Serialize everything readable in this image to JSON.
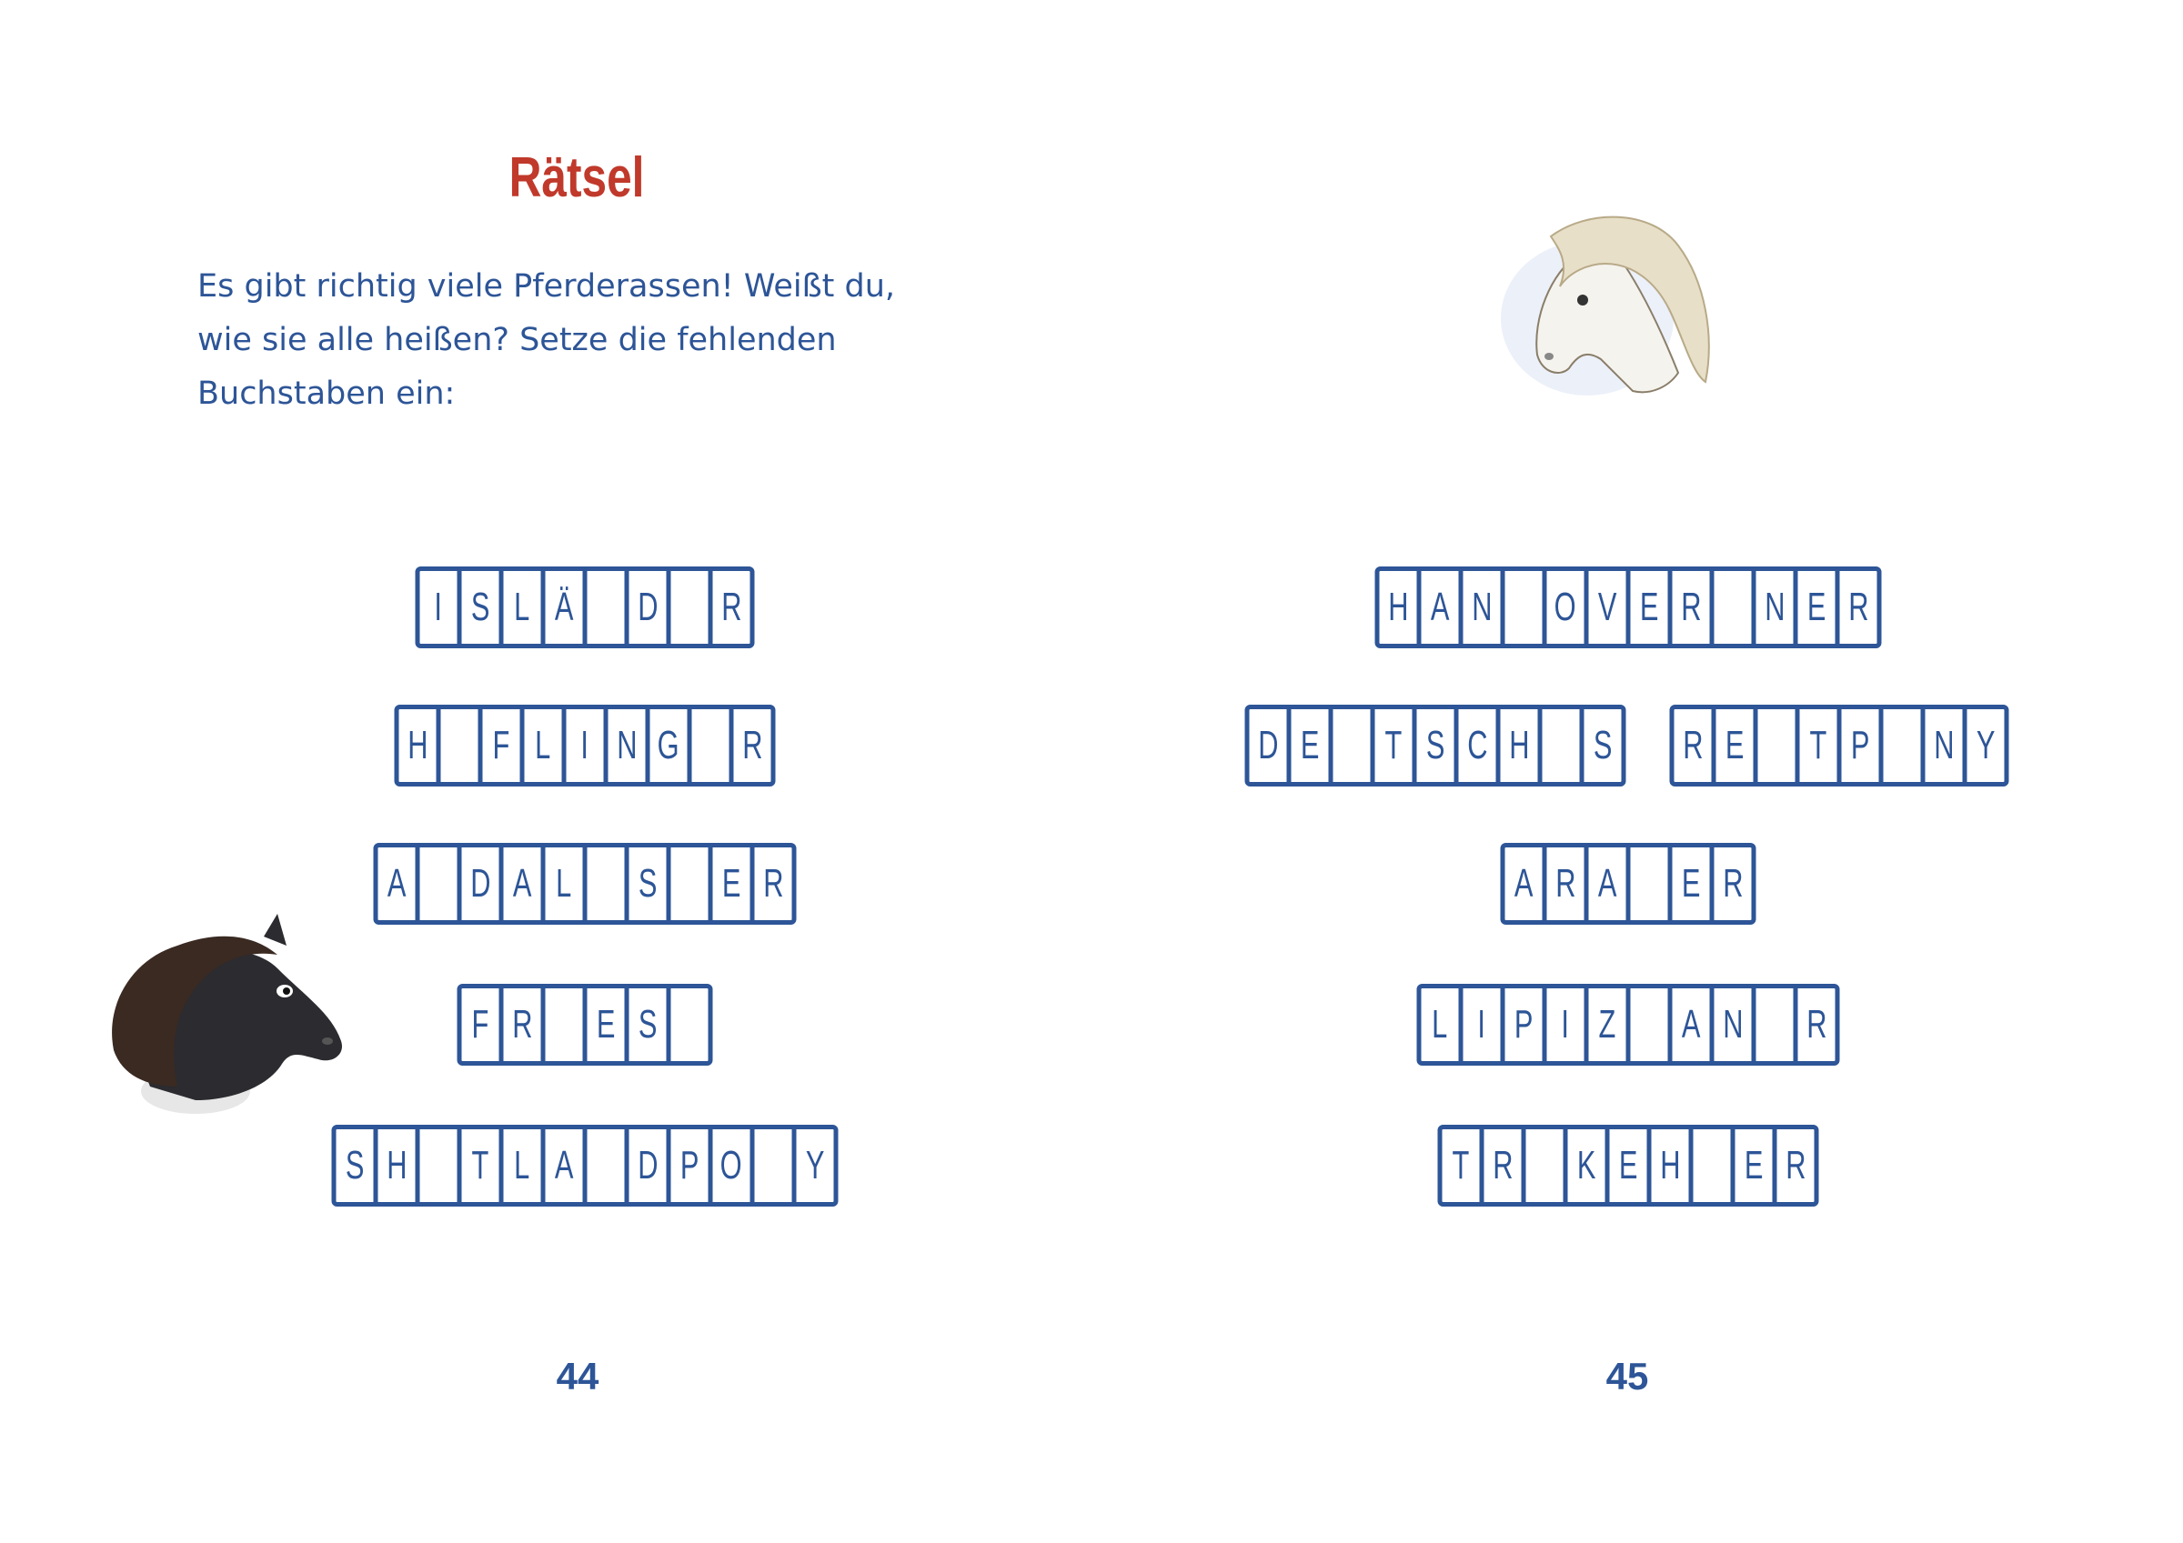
{
  "left_page": {
    "title": "Rätsel",
    "intro_lines": [
      "Es gibt richtig viele Pferderassen! Weißt du,",
      "wie sie alle heißen? Setze die fehlenden",
      "Buchstaben ein:"
    ],
    "puzzles": [
      [
        "I",
        "S",
        "L",
        "Ä",
        "",
        "D",
        "",
        "R"
      ],
      [
        "H",
        "",
        "F",
        "L",
        "I",
        "N",
        "G",
        "",
        "R"
      ],
      [
        "A",
        "",
        "D",
        "A",
        "L",
        "",
        "S",
        "",
        "E",
        "R"
      ],
      [
        "F",
        "R",
        "",
        "E",
        "S",
        ""
      ],
      [
        "S",
        "H",
        "",
        "T",
        "L",
        "A",
        "",
        "D",
        "P",
        "O",
        "",
        "Y"
      ]
    ],
    "page_number": "44",
    "illustration": "dark-pony-head"
  },
  "right_page": {
    "puzzles": [
      [
        [
          "H",
          "A",
          "N",
          "",
          "O",
          "V",
          "E",
          "R",
          "",
          "N",
          "E",
          "R"
        ]
      ],
      [
        [
          "D",
          "E",
          "",
          "T",
          "S",
          "C",
          "H",
          "",
          "S"
        ],
        [
          "R",
          "E",
          "",
          "T",
          "P",
          "",
          "N",
          "Y"
        ]
      ],
      [
        [
          "A",
          "R",
          "A",
          "",
          "E",
          "R"
        ]
      ],
      [
        [
          "L",
          "I",
          "P",
          "I",
          "Z",
          "",
          "A",
          "N",
          "",
          "R"
        ]
      ],
      [
        [
          "T",
          "R",
          "",
          "K",
          "E",
          "H",
          "",
          "E",
          "R"
        ]
      ]
    ],
    "page_number": "45",
    "illustration": "white-pony-head"
  },
  "colors": {
    "title": "#c0392b",
    "text": "#2d5597"
  }
}
